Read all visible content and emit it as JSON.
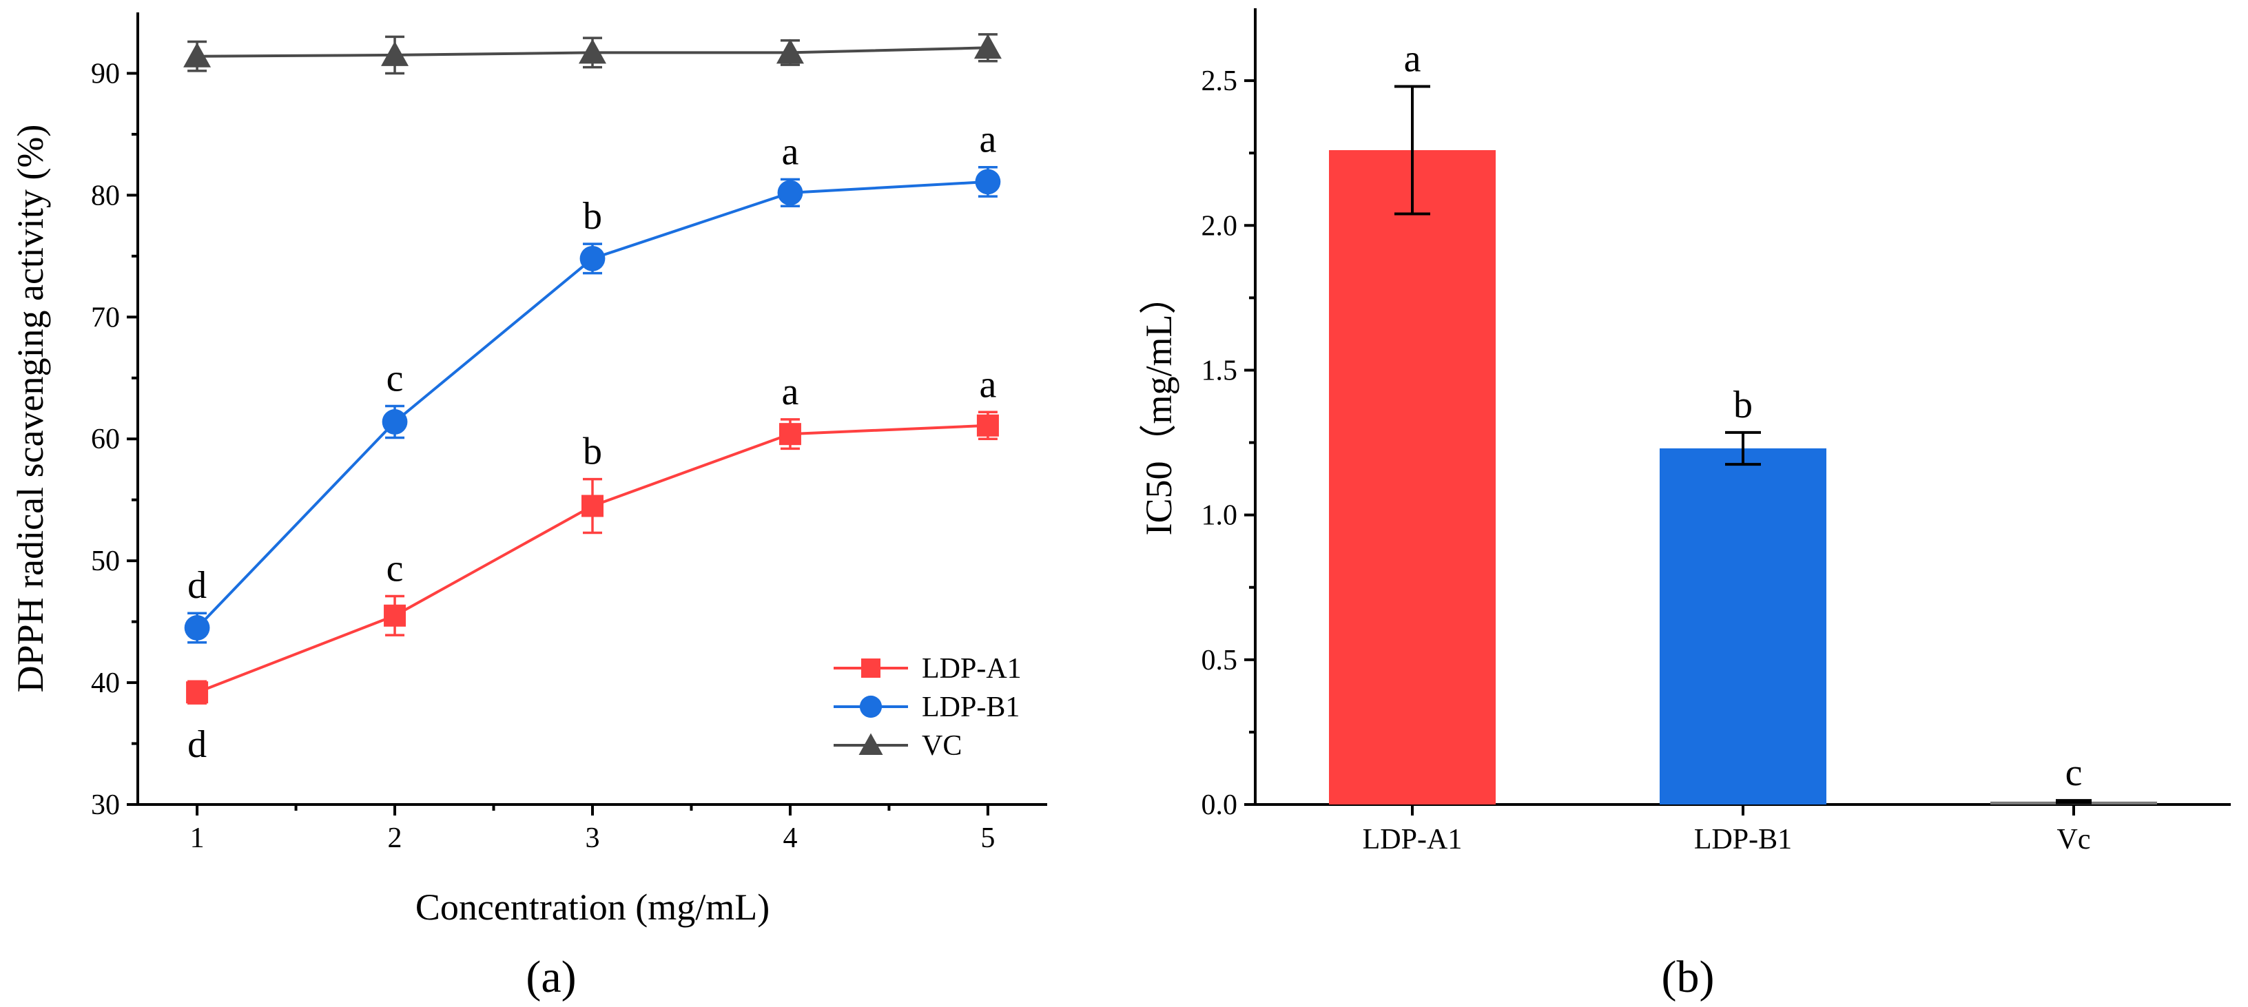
{
  "chart_data": [
    {
      "type": "line",
      "panel_label": "(a)",
      "xlabel": "Concentration (mg/mL)",
      "ylabel": "DPPH radical scavenging activity (%)",
      "x": [
        1,
        2,
        3,
        4,
        5
      ],
      "xlim": [
        0.7,
        5.3
      ],
      "ylim": [
        30,
        95
      ],
      "xticks": [
        "1",
        "2",
        "3",
        "4",
        "5"
      ],
      "yticks": [
        "30",
        "40",
        "50",
        "60",
        "70",
        "80",
        "90"
      ],
      "grid": false,
      "legend_position": "bottom-right",
      "series": [
        {
          "name": "LDP-A1",
          "color": "#ff4040",
          "marker": "square",
          "values": [
            39.2,
            45.5,
            54.5,
            60.4,
            61.1
          ],
          "errors": [
            0.9,
            1.6,
            2.2,
            1.2,
            1.1
          ],
          "letters": [
            "d",
            "c",
            "b",
            "a",
            "a"
          ]
        },
        {
          "name": "LDP-B1",
          "color": "#1a6fe0",
          "marker": "circle",
          "values": [
            44.5,
            61.4,
            74.8,
            80.2,
            81.1
          ],
          "errors": [
            1.2,
            1.3,
            1.2,
            1.1,
            1.2
          ],
          "letters": [
            "d",
            "c",
            "b",
            "a",
            "a"
          ]
        },
        {
          "name": "VC",
          "color": "#4a4a4a",
          "marker": "triangle",
          "values": [
            91.4,
            91.5,
            91.7,
            91.7,
            92.1
          ],
          "errors": [
            1.2,
            1.5,
            1.2,
            1.0,
            1.1
          ],
          "letters": [
            "",
            "",
            "",
            "",
            ""
          ]
        }
      ]
    },
    {
      "type": "bar",
      "panel_label": "(b)",
      "xlabel": "",
      "ylabel": "IC50（mg/mL）",
      "categories": [
        "LDP-A1",
        "LDP-B1",
        "Vc"
      ],
      "values": [
        2.26,
        1.23,
        0.01
      ],
      "errors": [
        0.22,
        0.055,
        0.004
      ],
      "letters": [
        "a",
        "b",
        "c"
      ],
      "colors": [
        "#ff4040",
        "#1a6fe0",
        "#7a7a7a"
      ],
      "ylim": [
        0,
        2.75
      ],
      "yticks": [
        "0.0",
        "0.5",
        "1.0",
        "1.5",
        "2.0",
        "2.5"
      ],
      "grid": false
    }
  ]
}
